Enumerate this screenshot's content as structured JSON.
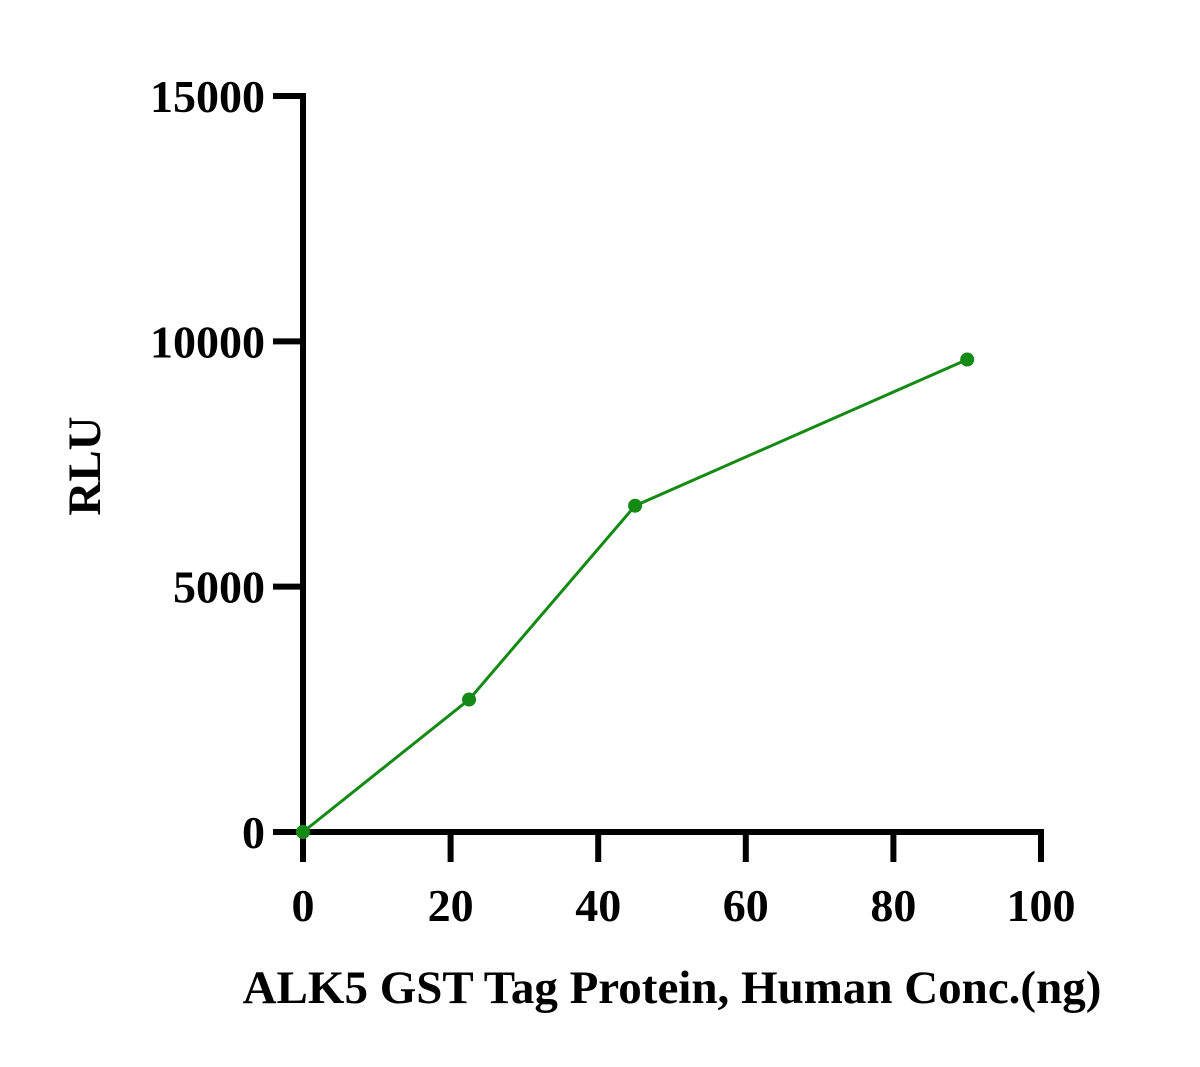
{
  "chart_data": {
    "type": "line",
    "title": "",
    "xlabel": "ALK5 GST Tag Protein, Human Conc.(ng)",
    "ylabel": "RLU",
    "xlim": [
      0,
      100
    ],
    "ylim": [
      0,
      15000
    ],
    "xticks": [
      0,
      20,
      40,
      60,
      80,
      100
    ],
    "yticks": [
      0,
      5000,
      10000,
      15000
    ],
    "xtick_labels": [
      "0",
      "20",
      "40",
      "60",
      "80",
      "100"
    ],
    "ytick_labels": [
      "0",
      "5000",
      "10000",
      "15000"
    ],
    "grid": false,
    "series": [
      {
        "color": "#138a13",
        "x": [
          0,
          22.5,
          45,
          90
        ],
        "y": [
          0,
          2700,
          6650,
          9630
        ]
      }
    ]
  }
}
